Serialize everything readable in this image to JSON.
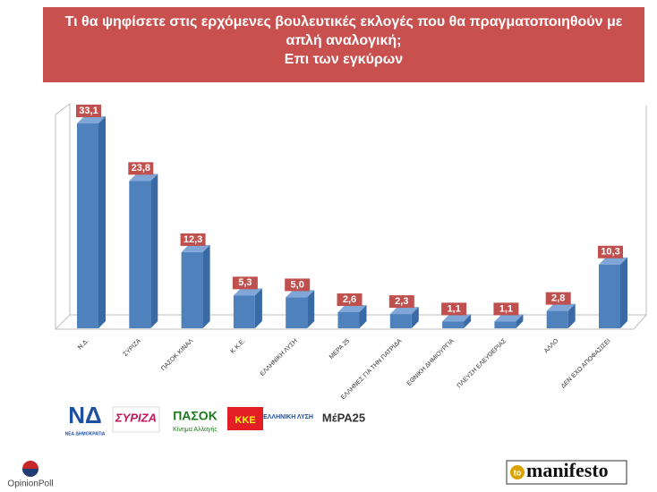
{
  "chart_data": {
    "type": "bar3d",
    "title": "Τι θα ψηφίσετε στις ερχόμενες βουλευτικές εκλογές που θα πραγματοποιηθούν με απλή αναλογική;",
    "subtitle": "Επι των εγκύρων",
    "categories": [
      "Ν.Δ.",
      "ΣΥΡΙΖΑ",
      "ΠΑΣΟΚ ΚΙΝΑΛ",
      "Κ.Κ.Ε.",
      "ΕΛΛΗΝΙΚΗ ΛΥΣΗ",
      "ΜΕΡΑ 25",
      "ΕΛΛΗΝΕΣ ΓΙΑ ΤΗΝ ΠΑΤΡΙΔΑ",
      "ΕΘΝΙΚΗ ΔΗΜΙΟΥΡΓΙΑ",
      "ΠΛΕΥΣΗ ΕΛΕΥΘΕΡΙΑΣ",
      "ΑΛΛΟ",
      "ΔΕΝ ΕΧΩ ΑΠΟΦΑΣΙΣΕΙ"
    ],
    "values": [
      33.1,
      23.8,
      12.3,
      5.3,
      5.0,
      2.6,
      2.3,
      1.1,
      1.1,
      2.8,
      10.3
    ],
    "value_labels": [
      "33,1",
      "23,8",
      "12,3",
      "5,3",
      "5,0",
      "2,6",
      "2,3",
      "1,1",
      "1,1",
      "2,8",
      "10,3"
    ],
    "color": "#4f81bd"
  },
  "logos": [
    "ΝΔ",
    "ΝΕΑ ΔΗΜΟΚΡΑΤΙΑ",
    "ΣΥΡΙΖΑ",
    "ΠΑΣΟΚ",
    "Κίνημα Αλλαγής",
    "ΚΚΕ",
    "ΕΛΛΗΝΙΚΗ ΛΥΣΗ",
    "ΜέΡΑ25"
  ],
  "footer": {
    "source": "OpinionPoll",
    "brand_prefix": "to",
    "brand": "manifesto"
  }
}
